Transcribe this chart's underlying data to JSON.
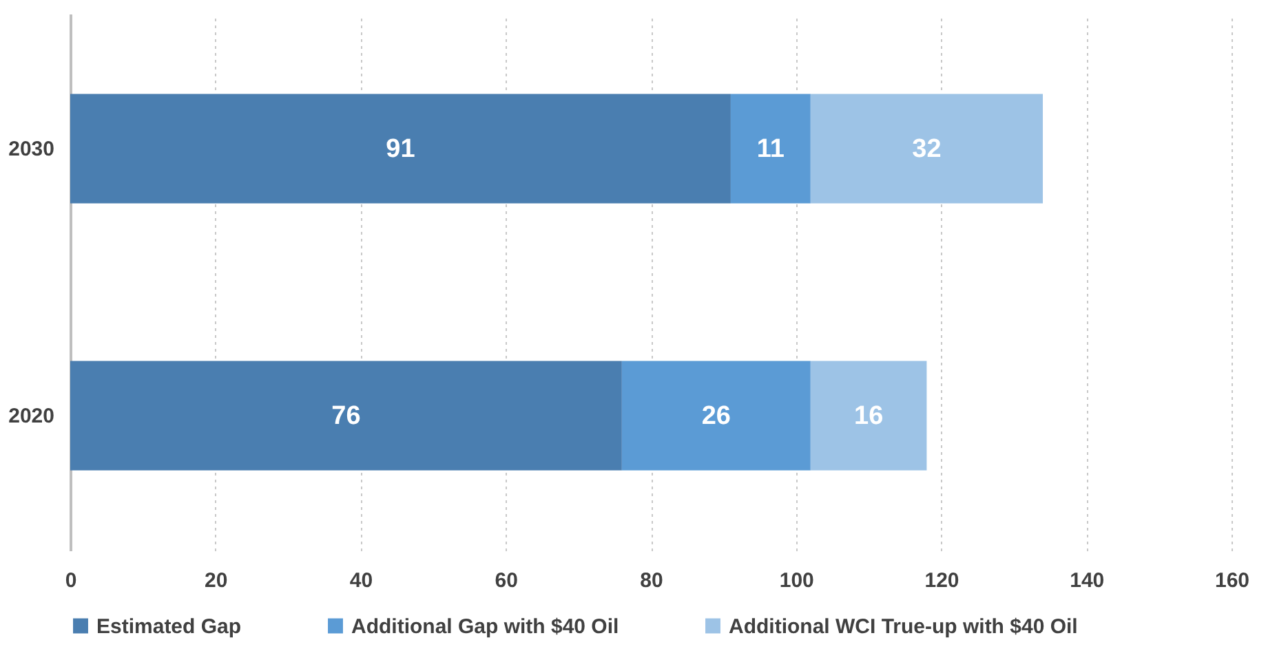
{
  "chart_data": {
    "type": "bar",
    "orientation": "horizontal",
    "stacked": true,
    "categories": [
      "2030",
      "2020"
    ],
    "series": [
      {
        "name": "Estimated Gap",
        "color": "#4a7eb0",
        "values": [
          91,
          76
        ]
      },
      {
        "name": "Additional Gap with $40 Oil",
        "color": "#5b9bd5",
        "values": [
          11,
          26
        ]
      },
      {
        "name": "Additional WCI True-up with $40 Oil",
        "color": "#9dc3e6",
        "values": [
          32,
          16
        ]
      }
    ],
    "xlim": [
      0,
      160
    ],
    "xticks": [
      0,
      20,
      40,
      60,
      80,
      100,
      120,
      140,
      160
    ],
    "grid": "x",
    "legend": "bottom",
    "data_labels": true
  }
}
